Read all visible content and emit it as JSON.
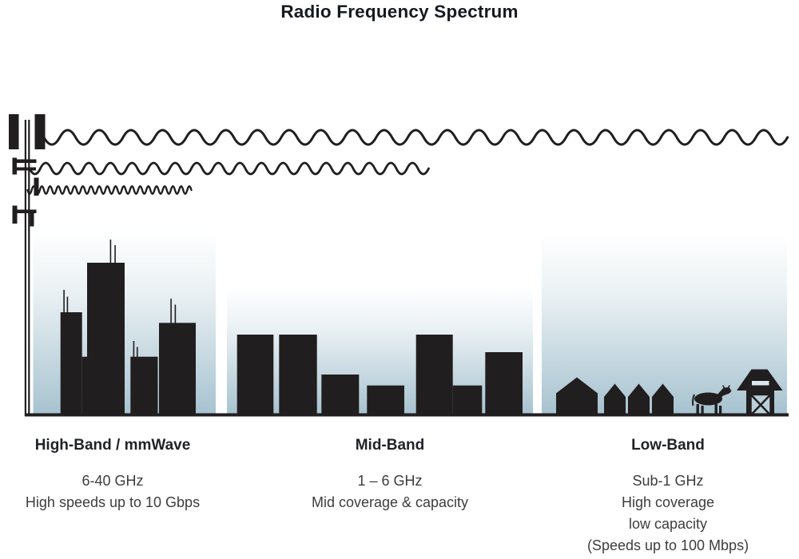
{
  "title": "Radio Frequency Spectrum",
  "bands": [
    {
      "label": "High-Band / mmWave",
      "lines": [
        "6-40 GHz",
        "High speeds up to 10 Gbps"
      ]
    },
    {
      "label": "Mid-Band",
      "lines": [
        "1 – 6 GHz",
        "Mid coverage & capacity"
      ]
    },
    {
      "label": "Low-Band",
      "lines": [
        "Sub-1 GHz",
        "High coverage",
        "low capacity",
        "(Speeds up to 100 Mbps)"
      ]
    }
  ],
  "scene": {
    "tower_icon": "cell-tower-icon",
    "waves": [
      {
        "name": "low-band-wave-icon",
        "wavelength": "long",
        "reach": "full-width"
      },
      {
        "name": "mid-band-wave-icon",
        "wavelength": "medium",
        "reach": "mid-city"
      },
      {
        "name": "high-band-wave-icon",
        "wavelength": "short",
        "reach": "near-tower"
      }
    ],
    "areas": [
      {
        "name": "dense-city-skyline",
        "band": "high"
      },
      {
        "name": "mid-city-skyline",
        "band": "mid"
      },
      {
        "name": "rural-countryside",
        "band": "low",
        "icons": [
          "house-icon",
          "cow-icon",
          "barn-icon"
        ]
      }
    ]
  },
  "colors": {
    "ink": "#211e1f",
    "sky": "#a6c2cf",
    "sky_mid": "#e9f0f3",
    "door": "#b9cfd9",
    "slit": "#dce8ee",
    "title": "#151a22",
    "label": "#1f2227",
    "body": "#3d3d3d"
  }
}
